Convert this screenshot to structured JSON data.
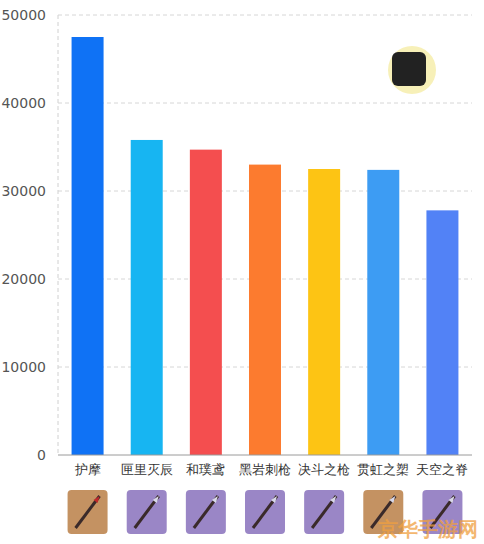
{
  "chart_data": {
    "type": "bar",
    "categories": [
      "护摩",
      "匣里灭辰",
      "和璞鸢",
      "黑岩刺枪",
      "决斗之枪",
      "贯虹之槊",
      "天空之脊"
    ],
    "values": [
      47500,
      35800,
      34700,
      33000,
      32500,
      32400,
      27800
    ],
    "colors": [
      "#0f72f5",
      "#17b5f2",
      "#f44e4f",
      "#fc7b2f",
      "#fdc414",
      "#3d9cf3",
      "#5282f6"
    ],
    "ylim": [
      0,
      50000
    ],
    "yticks": [
      0,
      10000,
      20000,
      30000,
      40000,
      50000
    ],
    "grid": true,
    "annotations": [
      "京华手游网"
    ]
  }
}
